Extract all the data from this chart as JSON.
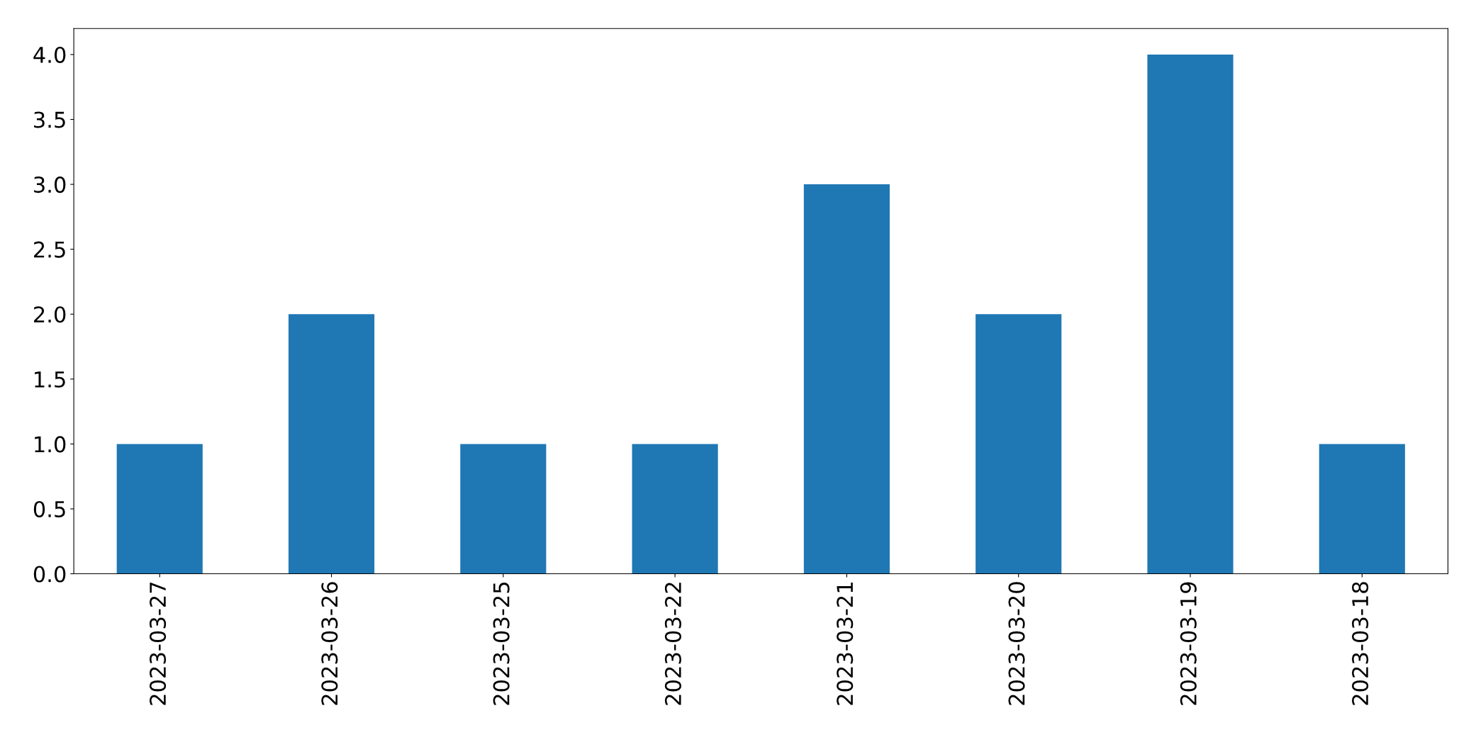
{
  "chart_data": {
    "type": "bar",
    "categories": [
      "2023-03-27",
      "2023-03-26",
      "2023-03-25",
      "2023-03-22",
      "2023-03-21",
      "2023-03-20",
      "2023-03-19",
      "2023-03-18"
    ],
    "values": [
      1,
      2,
      1,
      1,
      3,
      2,
      4,
      1
    ],
    "color": "#1f77b4",
    "ylim": [
      0,
      4.2
    ],
    "yticks": [
      {
        "value": 0,
        "label": "0.0"
      },
      {
        "value": 0.5,
        "label": "0.5"
      },
      {
        "value": 1,
        "label": "1.0"
      },
      {
        "value": 1.5,
        "label": "1.5"
      },
      {
        "value": 2,
        "label": "2.0"
      },
      {
        "value": 2.5,
        "label": "2.5"
      },
      {
        "value": 3,
        "label": "3.0"
      },
      {
        "value": 3.5,
        "label": "3.5"
      },
      {
        "value": 4,
        "label": "4.0"
      }
    ],
    "grid": false
  }
}
